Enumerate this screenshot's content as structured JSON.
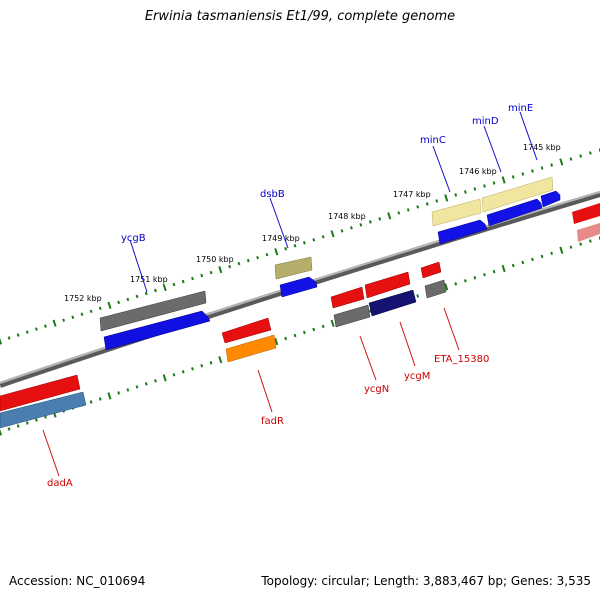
{
  "title": "Erwinia tasmaniensis Et1/99, complete genome",
  "footer": {
    "accession": "Accession: NC_010694",
    "topology": "Topology: circular; Length: 3,883,467 bp; Genes: 3,535"
  },
  "scale_labels": [
    "1752 kbp",
    "1751 kbp",
    "1750 kbp",
    "1749 kbp",
    "1748 kbp",
    "1747 kbp",
    "1746 kbp",
    "1745 kbp"
  ],
  "gene_labels_top": [
    "ycgB",
    "dsbB",
    "minC",
    "minD",
    "minE"
  ],
  "gene_labels_bottom": [
    "dadA",
    "fadR",
    "ycgN",
    "ycgM",
    "ETA_15380"
  ],
  "colors": {
    "forward_label": "#0000cc",
    "reverse_label": "#cc0000",
    "tick": "#1a7a1a",
    "backbone": "#808080"
  }
}
